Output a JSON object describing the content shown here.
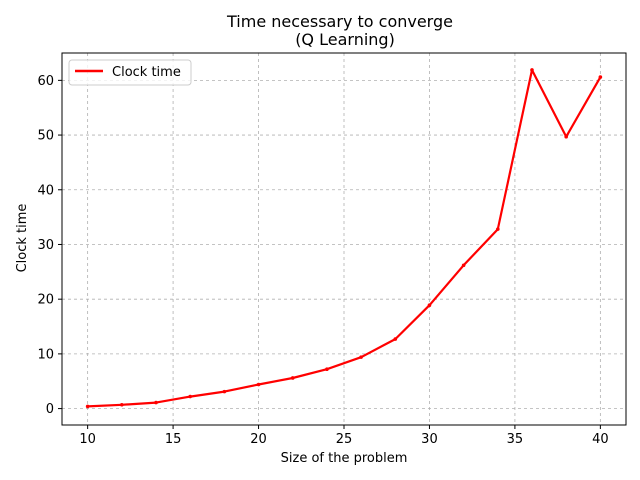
{
  "chart_data": {
    "type": "line",
    "title": "Time necessary to converge\n(Q Learning)",
    "title_lines": [
      "Time necessary to converge",
      "(Q Learning)"
    ],
    "xlabel": "Size of the problem",
    "ylabel": "Clock time",
    "xlim": [
      8.5,
      41.5
    ],
    "ylim": [
      -3,
      65
    ],
    "xticks": [
      10,
      15,
      20,
      25,
      30,
      35,
      40
    ],
    "yticks": [
      0,
      10,
      20,
      30,
      40,
      50,
      60
    ],
    "grid": true,
    "legend_position": "top-left",
    "series": [
      {
        "name": "Clock time",
        "color": "#ff0000",
        "x": [
          10,
          12,
          14,
          16,
          18,
          20,
          22,
          24,
          26,
          28,
          30,
          32,
          34,
          36,
          38,
          40
        ],
        "y": [
          0.4,
          0.7,
          1.1,
          2.2,
          3.1,
          4.4,
          5.6,
          7.2,
          9.4,
          12.7,
          18.9,
          26.2,
          32.8,
          61.9,
          49.7,
          60.6
        ]
      }
    ]
  }
}
